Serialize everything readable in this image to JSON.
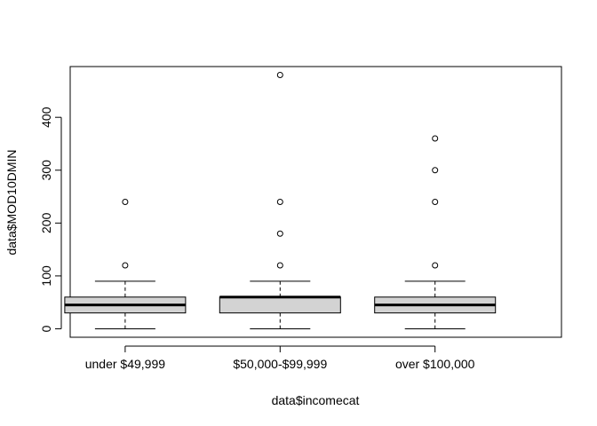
{
  "chart_data": {
    "type": "boxplot",
    "title": "",
    "xlabel": "data$incomecat",
    "ylabel": "data$MOD10DMIN",
    "ylim": [
      -16,
      496
    ],
    "yticks": [
      0,
      100,
      200,
      300,
      400
    ],
    "grid": false,
    "legend": "none",
    "box_fill": "#d3d3d3",
    "categories": [
      "under $49,999",
      "$50,000-$99,999",
      "over $100,000"
    ],
    "boxes": [
      {
        "category": "under $49,999",
        "whisker_low": 0,
        "q1": 30,
        "median": 45,
        "q3": 60,
        "whisker_high": 90,
        "outliers": [
          120,
          240
        ]
      },
      {
        "category": "$50,000-$99,999",
        "whisker_low": 0,
        "q1": 30,
        "median": 60,
        "q3": 60,
        "whisker_high": 90,
        "outliers": [
          120,
          180,
          240,
          480
        ]
      },
      {
        "category": "over $100,000",
        "whisker_low": 0,
        "q1": 30,
        "median": 45,
        "q3": 60,
        "whisker_high": 90,
        "outliers": [
          120,
          240,
          300,
          360
        ]
      }
    ]
  }
}
